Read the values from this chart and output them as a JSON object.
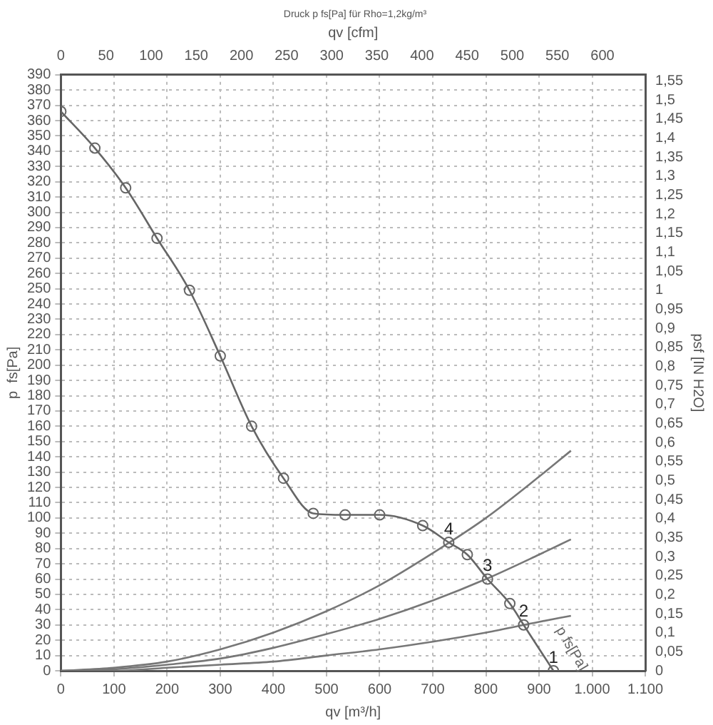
{
  "chart_data": {
    "type": "line",
    "title": "Druck p fs[Pa] für Rho=1,2kg/m³",
    "xlabel": "qv [m³/h]",
    "x2label": "qv [cfm]",
    "ylabel": "p  fs[Pa]",
    "y2label": "psf [IN H2O]",
    "xlim": [
      0,
      1100
    ],
    "xticks": [
      0,
      100,
      200,
      300,
      400,
      500,
      600,
      700,
      800,
      900,
      {
        "value": 1000,
        "label": "1.000"
      },
      {
        "value": 1100,
        "label": "1.100"
      }
    ],
    "x2lim": [
      0,
      647.4
    ],
    "x2ticks": [
      0,
      50,
      100,
      150,
      200,
      250,
      300,
      350,
      400,
      450,
      500,
      550,
      600
    ],
    "ylim": [
      0,
      390
    ],
    "yticks": [
      0,
      10,
      20,
      30,
      40,
      50,
      60,
      70,
      80,
      90,
      100,
      110,
      120,
      130,
      140,
      150,
      160,
      170,
      180,
      190,
      200,
      210,
      220,
      230,
      240,
      250,
      260,
      270,
      280,
      290,
      300,
      310,
      320,
      330,
      340,
      350,
      360,
      370,
      380,
      390
    ],
    "y2lim": [
      0,
      1.566
    ],
    "y2ticks": [
      {
        "value": 0,
        "label": "0"
      },
      {
        "value": 0.05,
        "label": "0,05"
      },
      {
        "value": 0.1,
        "label": "0,1"
      },
      {
        "value": 0.15,
        "label": "0,15"
      },
      {
        "value": 0.2,
        "label": "0,2"
      },
      {
        "value": 0.25,
        "label": "0,25"
      },
      {
        "value": 0.3,
        "label": "0,3"
      },
      {
        "value": 0.35,
        "label": "0,35"
      },
      {
        "value": 0.4,
        "label": "0,4"
      },
      {
        "value": 0.45,
        "label": "0,45"
      },
      {
        "value": 0.5,
        "label": "0,5"
      },
      {
        "value": 0.55,
        "label": "0,55"
      },
      {
        "value": 0.6,
        "label": "0,6"
      },
      {
        "value": 0.65,
        "label": "0,65"
      },
      {
        "value": 0.7,
        "label": "0,7"
      },
      {
        "value": 0.75,
        "label": "0,75"
      },
      {
        "value": 0.8,
        "label": "0,8"
      },
      {
        "value": 0.85,
        "label": "0,85"
      },
      {
        "value": 0.9,
        "label": "0,9"
      },
      {
        "value": 0.95,
        "label": "0,95"
      },
      {
        "value": 1,
        "label": "1"
      },
      {
        "value": 1.05,
        "label": "1,05"
      },
      {
        "value": 1.1,
        "label": "1,1"
      },
      {
        "value": 1.15,
        "label": "1,15"
      },
      {
        "value": 1.2,
        "label": "1,2"
      },
      {
        "value": 1.25,
        "label": "1,25"
      },
      {
        "value": 1.3,
        "label": "1,3"
      },
      {
        "value": 1.35,
        "label": "1,35"
      },
      {
        "value": 1.4,
        "label": "1,4"
      },
      {
        "value": 1.45,
        "label": "1,45"
      },
      {
        "value": 1.5,
        "label": "1,5"
      },
      {
        "value": 1.55,
        "label": "1,55"
      }
    ],
    "grid": true,
    "legend": false,
    "line_style": "solid",
    "series": [
      {
        "name": "p fs[Pa]",
        "color": "#666666",
        "marker": "circle",
        "x": [
          0,
          64,
          122,
          181,
          242,
          300,
          359,
          419,
          475,
          535,
          600,
          681,
          730,
          765,
          803,
          845,
          871,
          927
        ],
        "values": [
          366,
          342,
          316,
          283,
          249,
          206,
          160,
          126,
          103,
          102,
          102,
          95,
          84,
          76,
          60,
          44,
          30,
          0
        ]
      },
      {
        "color": "#777777",
        "marker": "none",
        "x": [
          0,
          100,
          200,
          300,
          400,
          500,
          600,
          700,
          800,
          900,
          960
        ],
        "values": [
          0,
          2,
          6,
          14,
          25,
          39,
          56,
          77,
          100,
          127,
          144
        ]
      },
      {
        "color": "#777777",
        "marker": "none",
        "x": [
          0,
          100,
          200,
          300,
          400,
          500,
          600,
          700,
          800,
          900,
          960
        ],
        "values": [
          0,
          1,
          4,
          8,
          15,
          24,
          34,
          46,
          60,
          76,
          86
        ]
      },
      {
        "color": "#777777",
        "marker": "none",
        "x": [
          0,
          100,
          200,
          300,
          400,
          500,
          600,
          700,
          800,
          900,
          960
        ],
        "values": [
          0,
          0,
          2,
          4,
          6,
          10,
          14,
          19,
          25,
          32,
          36
        ]
      }
    ],
    "annotations": [
      {
        "text": "1",
        "x": 927,
        "y": 0
      },
      {
        "text": "2",
        "x": 871,
        "y": 30
      },
      {
        "text": "3",
        "x": 803,
        "y": 60
      },
      {
        "text": "4",
        "x": 730,
        "y": 84
      }
    ]
  }
}
